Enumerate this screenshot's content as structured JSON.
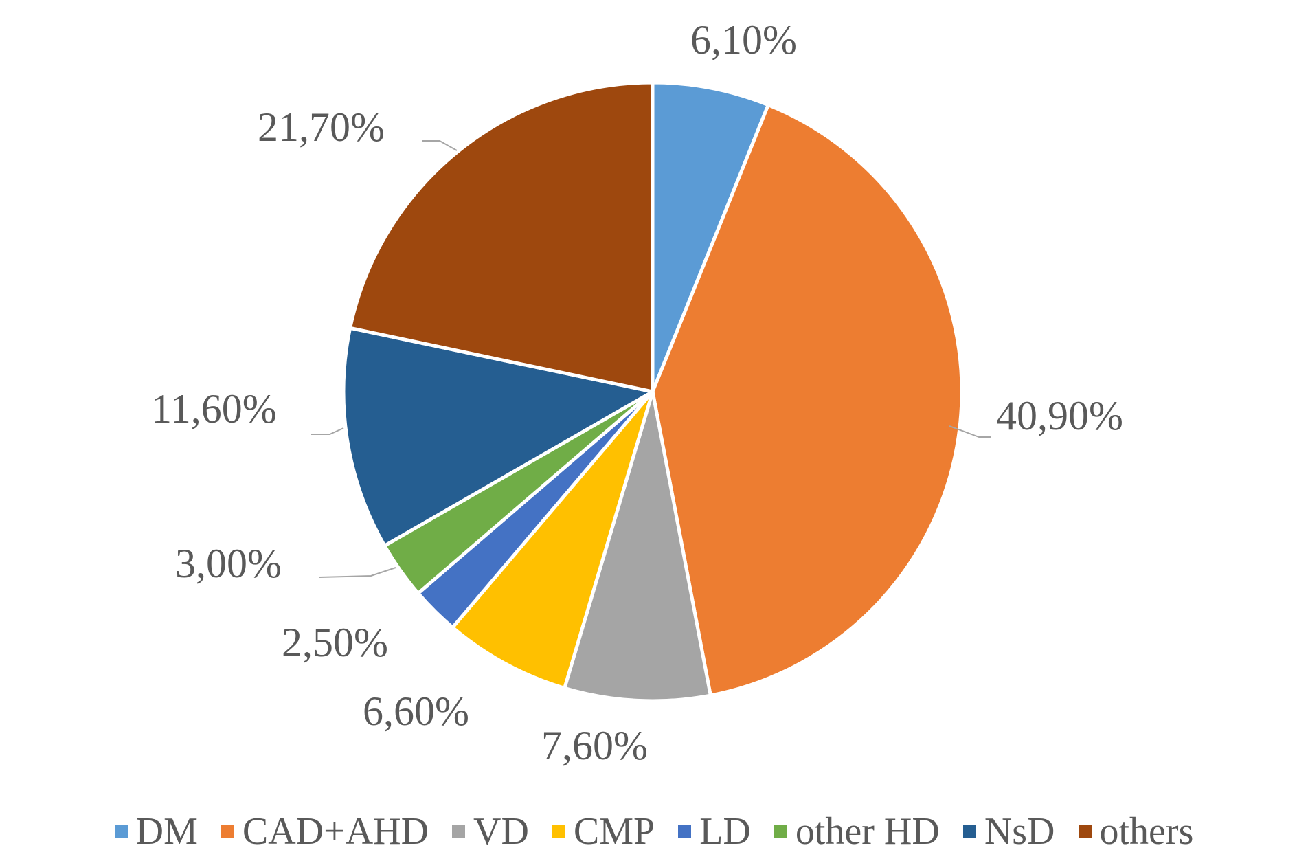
{
  "chart_data": {
    "type": "pie",
    "categories": [
      "DM",
      "CAD+AHD",
      "VD",
      "CMP",
      "LD",
      "other HD",
      "NsD",
      "others"
    ],
    "values": [
      6.1,
      40.9,
      7.6,
      6.6,
      2.5,
      3.0,
      11.6,
      21.7
    ],
    "value_labels": [
      "6,10%",
      "40,90%",
      "7,60%",
      "6,60%",
      "2,50%",
      "3,00%",
      "11,60%",
      "21,70%"
    ],
    "colors": [
      "#5b9bd5",
      "#ed7d31",
      "#a5a5a5",
      "#ffc000",
      "#4472c4",
      "#70ad47",
      "#255e91",
      "#9e480e"
    ],
    "start_angle": "12 o'clock",
    "direction": "clockwise",
    "legend_position": "bottom"
  }
}
